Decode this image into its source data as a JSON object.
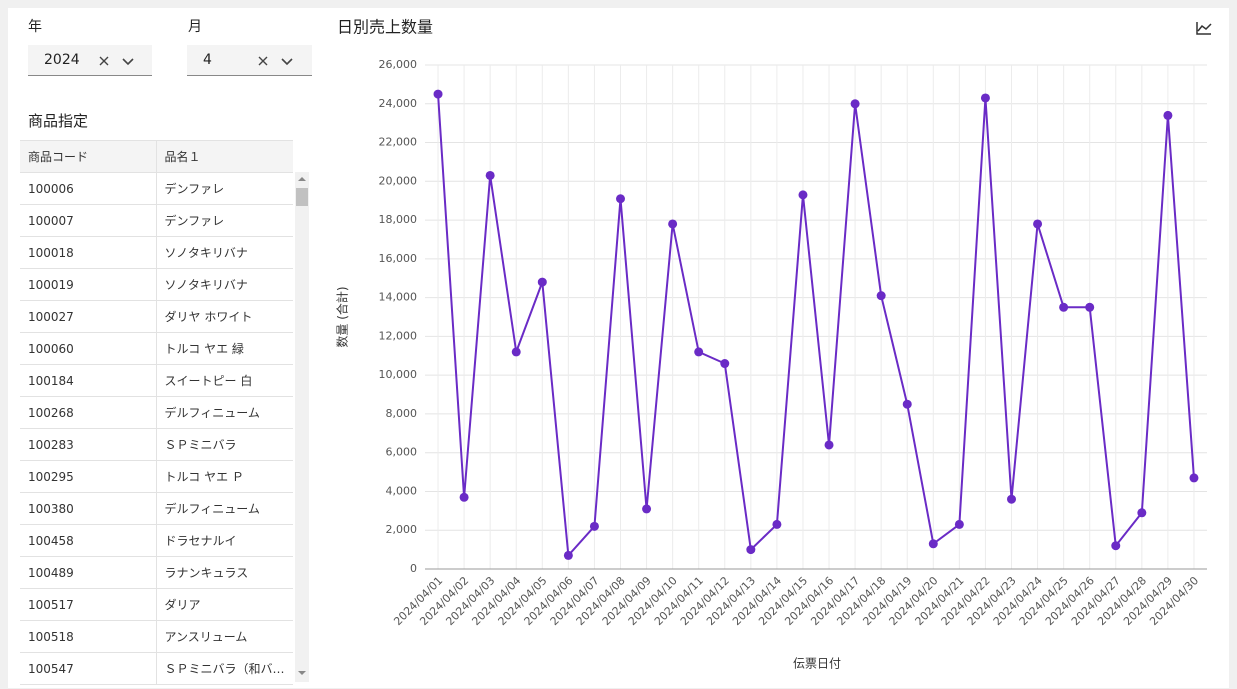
{
  "filters": [
    {
      "label": "年",
      "value": "2024"
    },
    {
      "label": "月",
      "value": "4"
    }
  ],
  "product_section": {
    "title": "商品指定",
    "table": {
      "columns": [
        "商品コード",
        "品名１"
      ],
      "rows": [
        [
          "100006",
          "デンファレ"
        ],
        [
          "100007",
          "デンファレ"
        ],
        [
          "100018",
          "ソノタキリバナ"
        ],
        [
          "100019",
          "ソノタキリバナ"
        ],
        [
          "100027",
          "ダリヤ ホワイト"
        ],
        [
          "100060",
          "トルコ ヤエ 緑"
        ],
        [
          "100184",
          "スイートピー 白"
        ],
        [
          "100268",
          "デルフィニューム"
        ],
        [
          "100283",
          "ＳＰミニバラ"
        ],
        [
          "100295",
          "トルコ ヤエ Ｐ"
        ],
        [
          "100380",
          "デルフィニューム"
        ],
        [
          "100458",
          "ドラセナルイ"
        ],
        [
          "100489",
          "ラナンキュラス"
        ],
        [
          "100517",
          "ダリア"
        ],
        [
          "100518",
          "アンスリューム"
        ],
        [
          "100547",
          "ＳＰミニバラ（和バ…"
        ]
      ]
    }
  },
  "chart_data": {
    "type": "line",
    "title": "日別売上数量",
    "x_label": "伝票日付",
    "y_label": "数量 (合計)",
    "categories": [
      "2024/04/01",
      "2024/04/02",
      "2024/04/03",
      "2024/04/04",
      "2024/04/05",
      "2024/04/06",
      "2024/04/07",
      "2024/04/08",
      "2024/04/09",
      "2024/04/10",
      "2024/04/11",
      "2024/04/12",
      "2024/04/13",
      "2024/04/14",
      "2024/04/15",
      "2024/04/16",
      "2024/04/17",
      "2024/04/18",
      "2024/04/19",
      "2024/04/20",
      "2024/04/21",
      "2024/04/22",
      "2024/04/23",
      "2024/04/24",
      "2024/04/25",
      "2024/04/26",
      "2024/04/27",
      "2024/04/28",
      "2024/04/29",
      "2024/04/30"
    ],
    "values": [
      24500,
      3700,
      20300,
      11200,
      14800,
      700,
      2200,
      19100,
      3100,
      17800,
      11200,
      10600,
      1000,
      2300,
      19300,
      6400,
      24000,
      14100,
      8500,
      1300,
      2300,
      24300,
      3600,
      17800,
      13500,
      13500,
      1200,
      2900,
      23400,
      4700
    ],
    "color": "#6a2bc6",
    "ylim": [
      0,
      26000
    ],
    "yticks": [
      0,
      {
        "value": 2000,
        "label": "2,000"
      },
      {
        "value": 4000,
        "label": "4,000"
      },
      {
        "value": 6000,
        "label": "6,000"
      },
      {
        "value": 8000,
        "label": "8,000"
      },
      {
        "value": 10000,
        "label": "10,000"
      },
      {
        "value": 12000,
        "label": "12,000"
      },
      {
        "value": 14000,
        "label": "14,000"
      },
      {
        "value": 16000,
        "label": "16,000"
      },
      {
        "value": 18000,
        "label": "18,000"
      },
      {
        "value": 20000,
        "label": "20,000"
      },
      {
        "value": 22000,
        "label": "22,000"
      },
      {
        "value": 24000,
        "label": "24,000"
      },
      {
        "value": 26000,
        "label": "26,000"
      }
    ],
    "grid": true
  }
}
